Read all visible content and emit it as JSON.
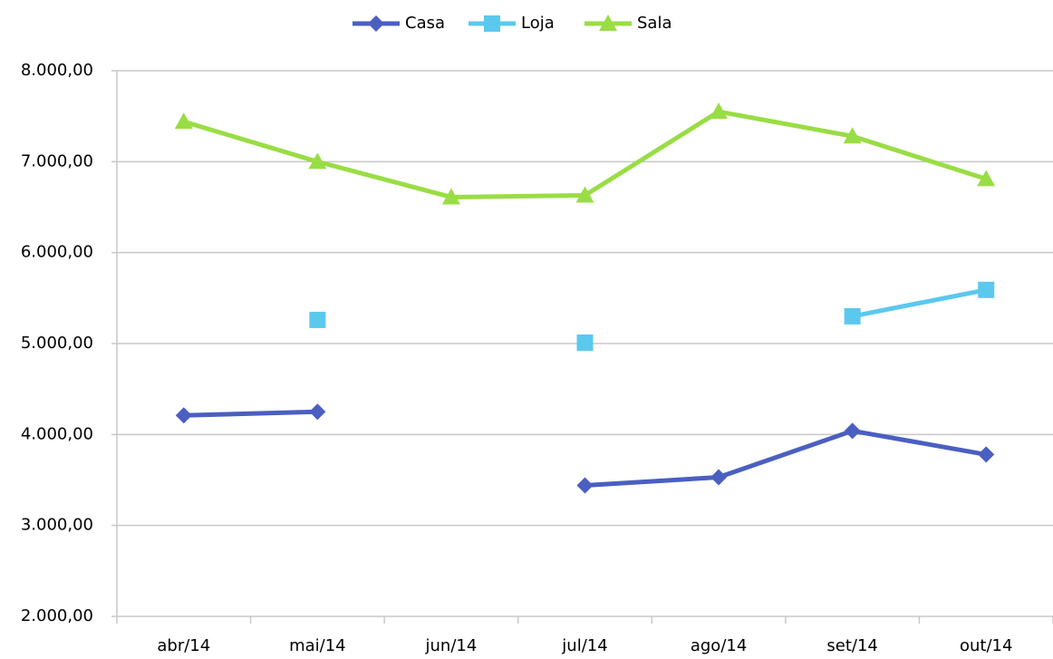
{
  "chart_data": {
    "type": "line",
    "categories": [
      "abr/14",
      "mai/14",
      "jun/14",
      "jul/14",
      "ago/14",
      "set/14",
      "out/14"
    ],
    "series": [
      {
        "name": "Casa",
        "color": "#4a5fc1",
        "marker": "diamond",
        "values": [
          4210,
          4250,
          null,
          3440,
          3530,
          4040,
          3780
        ]
      },
      {
        "name": "Loja",
        "color": "#5bc8ee",
        "marker": "square",
        "values": [
          null,
          5260,
          null,
          5010,
          null,
          5300,
          5590
        ]
      },
      {
        "name": "Sala",
        "color": "#99dd44",
        "marker": "triangle",
        "values": [
          7440,
          7000,
          6610,
          6630,
          7550,
          7280,
          6810
        ]
      }
    ],
    "ylim": [
      2000,
      8000
    ],
    "yticks": [
      {
        "value": 2000,
        "label": "2.000,00"
      },
      {
        "value": 3000,
        "label": "3.000,00"
      },
      {
        "value": 4000,
        "label": "4.000,00"
      },
      {
        "value": 5000,
        "label": "5.000,00"
      },
      {
        "value": 6000,
        "label": "6.000,00"
      },
      {
        "value": 7000,
        "label": "7.000,00"
      },
      {
        "value": 8000,
        "label": "8.000,00"
      }
    ],
    "grid": true,
    "legend": "top"
  }
}
